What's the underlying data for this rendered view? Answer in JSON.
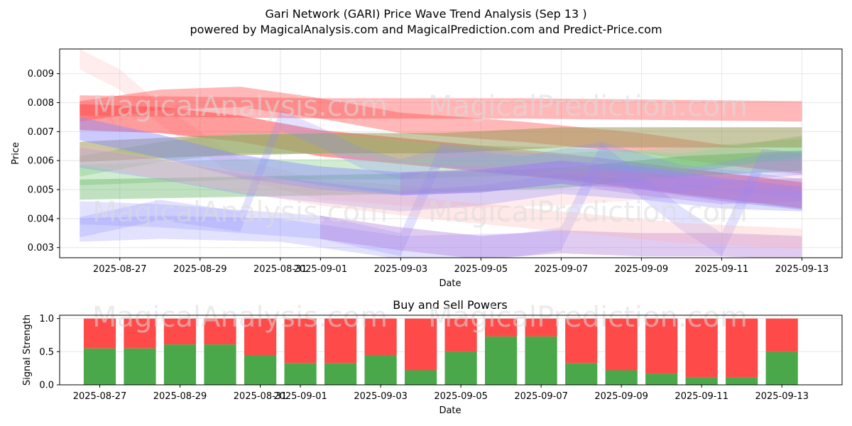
{
  "title": "Gari Network (GARI) Price Wave Trend Analysis (Sep 13 )",
  "subtitle": "powered by MagicalAnalysis.com and MagicalPrediction.com and Predict-Price.com",
  "watermarks": {
    "a": "MagicalAnalysis.com",
    "b": "MagicalPrediction.com"
  },
  "colors": {
    "red": "#ff4a4a",
    "green": "#4aa84a",
    "blue": "#8a8aff",
    "purple": "#b37fdc",
    "olive": "#9a9a5a",
    "pink": "#ffb3b3",
    "lightgreen": "#99d699",
    "buy": "#4aa84a",
    "sell": "#ff4a4a"
  },
  "chart_data": [
    {
      "type": "area",
      "xlabel": "Date",
      "ylabel": "Price",
      "ylim": [
        0.00265,
        0.00985
      ],
      "xlim": [
        "2025-08-25T12:00",
        "2025-09-14T00:00"
      ],
      "yticks": [
        "0.003",
        "0.004",
        "0.005",
        "0.006",
        "0.007",
        "0.008",
        "0.009"
      ],
      "xticks": [
        "2025-08-27",
        "2025-08-29",
        "2025-08-31",
        "2025-09-01",
        "2025-09-03",
        "2025-09-05",
        "2025-09-07",
        "2025-09-09",
        "2025-09-11",
        "2025-09-13"
      ],
      "grid": true,
      "series": [
        {
          "color": "pink",
          "alpha": 0.25,
          "width": 0.00035,
          "points": [
            [
              "2025-08-26",
              0.0095
            ],
            [
              "2025-08-27",
              0.0088
            ],
            [
              "2025-08-28",
              0.0076
            ],
            [
              "2025-08-30",
              0.0057
            ],
            [
              "2025-09-01",
              0.005
            ],
            [
              "2025-09-04",
              0.0047
            ],
            [
              "2025-09-07",
              0.0048
            ],
            [
              "2025-09-10",
              0.0051
            ],
            [
              "2025-09-13",
              0.0052
            ]
          ]
        },
        {
          "color": "red",
          "alpha": 0.4,
          "width": 0.00035,
          "points": [
            [
              "2025-08-26",
              0.0077
            ],
            [
              "2025-08-28",
              0.0081
            ],
            [
              "2025-08-30",
              0.0082
            ],
            [
              "2025-09-01",
              0.0078
            ],
            [
              "2025-09-03",
              0.0073
            ],
            [
              "2025-09-06",
              0.007
            ],
            [
              "2025-09-09",
              0.0066
            ],
            [
              "2025-09-11",
              0.0062
            ],
            [
              "2025-09-13",
              0.0059
            ]
          ]
        },
        {
          "color": "red",
          "alpha": 0.4,
          "width": 0.00035,
          "points": [
            [
              "2025-08-26",
              0.0079
            ],
            [
              "2025-09-01",
              0.0078
            ],
            [
              "2025-09-06",
              0.0078
            ],
            [
              "2025-09-13",
              0.0077
            ]
          ]
        },
        {
          "color": "red",
          "alpha": 0.55,
          "width": 0.00045,
          "points": [
            [
              "2025-08-26",
              0.0075
            ],
            [
              "2025-08-28",
              0.0074
            ],
            [
              "2025-08-30",
              0.0071
            ],
            [
              "2025-09-01",
              0.0066
            ],
            [
              "2025-09-04",
              0.0062
            ],
            [
              "2025-09-07",
              0.0058
            ],
            [
              "2025-09-10",
              0.0053
            ],
            [
              "2025-09-13",
              0.0048
            ]
          ]
        },
        {
          "color": "lightgreen",
          "alpha": 0.55,
          "width": 0.00035,
          "points": [
            [
              "2025-08-26",
              0.0058
            ],
            [
              "2025-08-28",
              0.0063
            ],
            [
              "2025-08-30",
              0.0066
            ],
            [
              "2025-09-01",
              0.0066
            ],
            [
              "2025-09-04",
              0.0062
            ],
            [
              "2025-09-07",
              0.0061
            ],
            [
              "2025-09-10",
              0.0059
            ],
            [
              "2025-09-13",
              0.0065
            ]
          ]
        },
        {
          "color": "lightgreen",
          "alpha": 0.45,
          "width": 0.00035,
          "points": [
            [
              "2025-08-26",
              0.0055
            ],
            [
              "2025-08-30",
              0.0057
            ],
            [
              "2025-09-03",
              0.0057
            ],
            [
              "2025-09-07",
              0.0059
            ],
            [
              "2025-09-10",
              0.0061
            ],
            [
              "2025-09-13",
              0.0064
            ]
          ]
        },
        {
          "color": "olive",
          "alpha": 0.55,
          "width": 0.00035,
          "points": [
            [
              "2025-08-26",
              0.0063
            ],
            [
              "2025-08-29",
              0.0065
            ],
            [
              "2025-09-01",
              0.0066
            ],
            [
              "2025-09-04",
              0.0066
            ],
            [
              "2025-09-07",
              0.0068
            ],
            [
              "2025-09-10",
              0.0068
            ],
            [
              "2025-09-13",
              0.0068
            ]
          ]
        },
        {
          "color": "green",
          "alpha": 0.35,
          "width": 0.00035,
          "points": [
            [
              "2025-08-26",
              0.005
            ],
            [
              "2025-08-30",
              0.0051
            ],
            [
              "2025-09-03",
              0.0052
            ],
            [
              "2025-09-07",
              0.0054
            ],
            [
              "2025-09-10",
              0.0058
            ],
            [
              "2025-09-13",
              0.006
            ]
          ]
        },
        {
          "color": "blue",
          "alpha": 0.45,
          "width": 0.0004,
          "points": [
            [
              "2025-08-26",
              0.0071
            ],
            [
              "2025-08-28",
              0.0065
            ],
            [
              "2025-08-30",
              0.0058
            ],
            [
              "2025-09-01",
              0.0054
            ],
            [
              "2025-09-03",
              0.0052
            ],
            [
              "2025-09-05",
              0.0053
            ],
            [
              "2025-09-07",
              0.0056
            ],
            [
              "2025-09-09",
              0.0054
            ],
            [
              "2025-09-11",
              0.005
            ],
            [
              "2025-09-13",
              0.0047
            ]
          ]
        },
        {
          "color": "blue",
          "alpha": 0.3,
          "width": 0.00035,
          "points": [
            [
              "2025-08-26",
              0.0061
            ],
            [
              "2025-08-28",
              0.0057
            ],
            [
              "2025-08-30",
              0.0052
            ],
            [
              "2025-09-01",
              0.0049
            ],
            [
              "2025-09-03",
              0.0046
            ],
            [
              "2025-09-05",
              0.0048
            ],
            [
              "2025-09-07",
              0.0052
            ],
            [
              "2025-09-09",
              0.005
            ],
            [
              "2025-09-11",
              0.0047
            ],
            [
              "2025-09-13",
              0.0046
            ]
          ]
        },
        {
          "color": "blue",
          "alpha": 0.25,
          "width": 0.00035,
          "points": [
            [
              "2025-08-26",
              0.0037
            ],
            [
              "2025-08-28",
              0.0043
            ],
            [
              "2025-08-30",
              0.0039
            ],
            [
              "2025-08-31",
              0.0074
            ],
            [
              "2025-09-01",
              0.0068
            ],
            [
              "2025-09-02",
              0.0061
            ],
            [
              "2025-09-03",
              0.0057
            ],
            [
              "2025-09-04",
              0.0061
            ],
            [
              "2025-09-06",
              0.0058
            ],
            [
              "2025-09-08",
              0.0063
            ],
            [
              "2025-09-10",
              0.0055
            ],
            [
              "2025-09-12",
              0.0052
            ],
            [
              "2025-09-13",
              0.005
            ]
          ]
        },
        {
          "color": "blue",
          "alpha": 0.25,
          "width": 0.0004,
          "points": [
            [
              "2025-08-26",
              0.0042
            ],
            [
              "2025-08-28",
              0.0041
            ],
            [
              "2025-08-30",
              0.0039
            ],
            [
              "2025-09-01",
              0.0037
            ],
            [
              "2025-09-03",
              0.0031
            ],
            [
              "2025-09-04",
              0.0062
            ],
            [
              "2025-09-06",
              0.0059
            ],
            [
              "2025-09-08",
              0.0057
            ],
            [
              "2025-09-10",
              0.0053
            ],
            [
              "2025-09-12",
              0.0058
            ],
            [
              "2025-09-13",
              0.0059
            ]
          ]
        },
        {
          "color": "blue",
          "alpha": 0.25,
          "width": 0.0004,
          "points": [
            [
              "2025-08-26",
              0.0036
            ],
            [
              "2025-08-28",
              0.0037
            ],
            [
              "2025-08-31",
              0.0036
            ],
            [
              "2025-09-03",
              0.003
            ],
            [
              "2025-09-06",
              0.0031
            ],
            [
              "2025-09-07",
              0.0033
            ],
            [
              "2025-09-08",
              0.0062
            ],
            [
              "2025-09-10",
              0.004
            ],
            [
              "2025-09-11",
              0.0031
            ],
            [
              "2025-09-12",
              0.006
            ],
            [
              "2025-09-13",
              0.0059
            ]
          ]
        },
        {
          "color": "purple",
          "alpha": 0.4,
          "width": 0.0004,
          "points": [
            [
              "2025-09-01",
              0.0037
            ],
            [
              "2025-09-03",
              0.0033
            ],
            [
              "2025-09-05",
              0.003
            ],
            [
              "2025-09-07",
              0.0032
            ],
            [
              "2025-09-09",
              0.0031
            ],
            [
              "2025-09-11",
              0.0031
            ],
            [
              "2025-09-13",
              0.003
            ]
          ]
        },
        {
          "color": "purple",
          "alpha": 0.35,
          "width": 0.0004,
          "points": [
            [
              "2025-09-03",
              0.0052
            ],
            [
              "2025-09-05",
              0.0053
            ],
            [
              "2025-09-07",
              0.0056
            ],
            [
              "2025-09-09",
              0.0052
            ],
            [
              "2025-09-11",
              0.0049
            ],
            [
              "2025-09-13",
              0.005
            ]
          ]
        },
        {
          "color": "pink",
          "alpha": 0.3,
          "width": 0.00035,
          "points": [
            [
              "2025-08-26",
              0.0062
            ],
            [
              "2025-08-29",
              0.0055
            ],
            [
              "2025-09-01",
              0.0048
            ],
            [
              "2025-09-04",
              0.0043
            ],
            [
              "2025-09-07",
              0.0039
            ],
            [
              "2025-09-10",
              0.0035
            ],
            [
              "2025-09-13",
              0.0033
            ]
          ]
        }
      ]
    },
    {
      "type": "bar",
      "title": "Buy and Sell Powers",
      "xlabel": "Date",
      "ylabel": "Signal Strength",
      "ylim": [
        0,
        1.05
      ],
      "yticks": [
        "0.0",
        "0.5",
        "1.0"
      ],
      "xticks": [
        "2025-08-27",
        "2025-08-29",
        "2025-08-31",
        "2025-09-01",
        "2025-09-03",
        "2025-09-05",
        "2025-09-07",
        "2025-09-09",
        "2025-09-11",
        "2025-09-13"
      ],
      "categories": [
        "2025-08-27",
        "2025-08-28",
        "2025-08-29",
        "2025-08-30",
        "2025-08-31",
        "2025-09-01",
        "2025-09-02",
        "2025-09-03",
        "2025-09-04",
        "2025-09-05",
        "2025-09-06",
        "2025-09-07",
        "2025-09-08",
        "2025-09-09",
        "2025-09-10",
        "2025-09-11",
        "2025-09-12",
        "2025-09-13"
      ],
      "series": [
        {
          "color": "buy",
          "values": [
            0.55,
            0.55,
            0.61,
            0.61,
            0.45,
            0.33,
            0.33,
            0.45,
            0.22,
            0.5,
            0.73,
            0.73,
            0.33,
            0.22,
            0.17,
            0.11,
            0.11,
            0.5
          ]
        },
        {
          "color": "sell",
          "values": [
            0.45,
            0.45,
            0.39,
            0.39,
            0.55,
            0.67,
            0.67,
            0.55,
            0.78,
            0.5,
            0.27,
            0.27,
            0.67,
            0.78,
            0.83,
            0.89,
            0.89,
            0.5
          ]
        }
      ],
      "grid": true
    }
  ]
}
